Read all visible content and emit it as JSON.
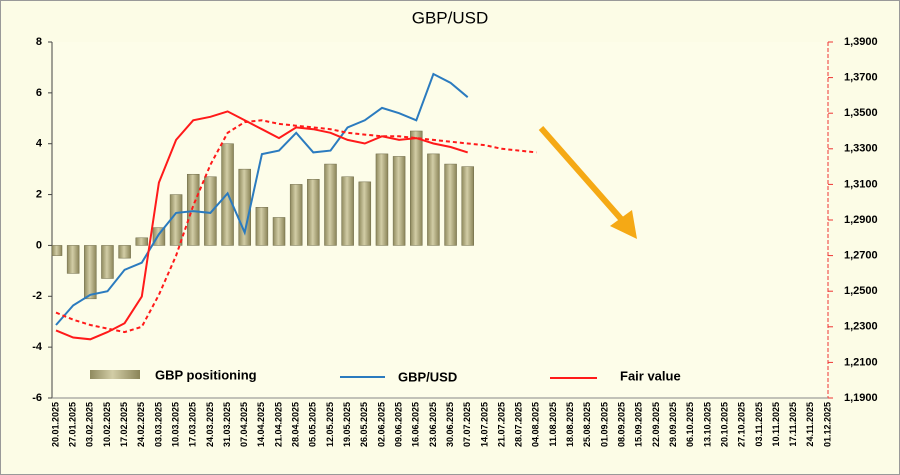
{
  "chart_data": {
    "type": "bar",
    "title": "GBP/USD",
    "categories": [
      "20.01.2025",
      "27.01.2025",
      "03.02.2025",
      "10.02.2025",
      "17.02.2025",
      "24.02.2025",
      "03.03.2025",
      "10.03.2025",
      "17.03.2025",
      "24.03.2025",
      "31.03.2025",
      "07.04.2025",
      "14.04.2025",
      "21.04.2025",
      "28.04.2025",
      "05.05.2025",
      "12.05.2025",
      "19.05.2025",
      "26.05.2025",
      "02.06.2025",
      "09.06.2025",
      "16.06.2025",
      "23.06.2025",
      "30.06.2025",
      "07.07.2025",
      "14.07.2025",
      "21.07.2025",
      "28.07.2025",
      "04.08.2025",
      "11.08.2025",
      "18.08.2025",
      "25.08.2025",
      "01.09.2025",
      "08.09.2025",
      "15.09.2025",
      "22.09.2025",
      "29.09.2025",
      "06.10.2025",
      "13.10.2025",
      "20.10.2025",
      "27.10.2025",
      "03.11.2025",
      "10.11.2025",
      "17.11.2025",
      "24.11.2025",
      "01.12.2025"
    ],
    "series": [
      {
        "name": "GBP positioning",
        "type": "bar",
        "color": "#a49f73",
        "values": [
          -0.4,
          -1.1,
          -2.1,
          -1.3,
          -0.5,
          0.3,
          0.7,
          2.0,
          2.8,
          2.7,
          4.0,
          3.0,
          1.5,
          1.1,
          2.4,
          2.6,
          3.2,
          2.7,
          2.5,
          3.6,
          3.5,
          4.5,
          3.6,
          3.2,
          3.1,
          null,
          null,
          null,
          null,
          null,
          null,
          null,
          null,
          null,
          null,
          null,
          null,
          null,
          null,
          null,
          null,
          null,
          null,
          null,
          null,
          null
        ]
      },
      {
        "name": "GBP/USD",
        "type": "line",
        "axis": "y2",
        "color": "#2b7bbf",
        "values": [
          1.231,
          1.242,
          1.248,
          1.25,
          1.262,
          1.266,
          1.282,
          1.294,
          1.295,
          1.294,
          1.305,
          1.283,
          1.327,
          1.329,
          1.339,
          1.328,
          1.329,
          1.342,
          1.346,
          1.353,
          1.35,
          1.346,
          1.372,
          1.367,
          1.359,
          null,
          null,
          null,
          null,
          null,
          null,
          null,
          null,
          null,
          null,
          null,
          null,
          null,
          null,
          null,
          null,
          null,
          null,
          null,
          null,
          null
        ]
      },
      {
        "name": "Fair value",
        "type": "line",
        "axis": "y2",
        "color": "#ff1a1a",
        "values": [
          1.228,
          1.224,
          1.223,
          1.227,
          1.232,
          1.247,
          1.311,
          1.335,
          1.346,
          1.348,
          1.351,
          1.346,
          1.341,
          1.336,
          1.342,
          1.341,
          1.339,
          1.335,
          1.333,
          1.337,
          1.335,
          1.336,
          1.333,
          1.331,
          1.328,
          null,
          null,
          null,
          null,
          null,
          null,
          null,
          null,
          null,
          null,
          null,
          null,
          null,
          null,
          null,
          null,
          null,
          null,
          null,
          null,
          null
        ]
      },
      {
        "type": "line",
        "axis": "y2",
        "color": "#ff1a1a",
        "dashed": true,
        "values": [
          1.238,
          1.234,
          1.231,
          1.229,
          1.227,
          1.23,
          1.248,
          1.27,
          1.298,
          1.321,
          1.339,
          1.345,
          1.346,
          1.344,
          1.343,
          1.342,
          1.341,
          1.339,
          1.338,
          1.337,
          1.337,
          1.336,
          1.335,
          1.334,
          1.333,
          1.332,
          1.33,
          1.329,
          1.328,
          null,
          null,
          null,
          null,
          null,
          null,
          null,
          null,
          null,
          null,
          null,
          null,
          null,
          null,
          null,
          null,
          null
        ]
      }
    ],
    "ylim": [
      -6,
      8
    ],
    "yticks": [
      -6,
      -4,
      -2,
      0,
      2,
      4,
      6,
      8
    ],
    "y2lim": [
      1.19,
      1.39
    ],
    "y2ticks": [
      {
        "value": 1.19,
        "label": "1,1900"
      },
      {
        "value": 1.21,
        "label": "1,2100"
      },
      {
        "value": 1.23,
        "label": "1,2300"
      },
      {
        "value": 1.25,
        "label": "1,2500"
      },
      {
        "value": 1.27,
        "label": "1,2700"
      },
      {
        "value": 1.29,
        "label": "1,2900"
      },
      {
        "value": 1.31,
        "label": "1,3100"
      },
      {
        "value": 1.33,
        "label": "1,3300"
      },
      {
        "value": 1.35,
        "label": "1,3500"
      },
      {
        "value": 1.37,
        "label": "1,3700"
      },
      {
        "value": 1.39,
        "label": "1,3900"
      }
    ],
    "grid": false
  }
}
